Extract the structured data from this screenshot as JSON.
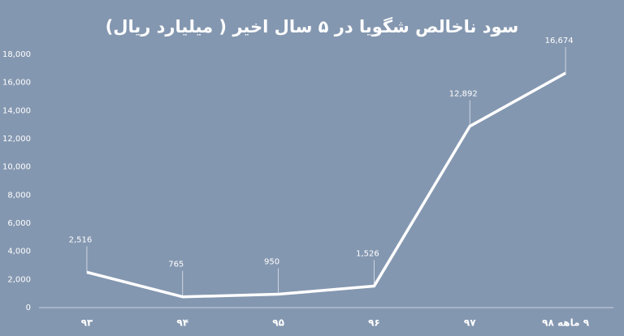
{
  "chart_data": {
    "type": "line",
    "title": "سود ناخالص شگویا در ۵ سال اخیر ( میلیارد ریال)",
    "categories": [
      "۹۳",
      "۹۴",
      "۹۵",
      "۹۶",
      "۹۷",
      "۹ ماهه ۹۸"
    ],
    "values": [
      2516,
      765,
      950,
      1526,
      12892,
      16674
    ],
    "value_labels": [
      "2,516",
      "765",
      "950",
      "1,526",
      "12,892",
      "16,674"
    ],
    "color": "#ffffff",
    "ylim": [
      0,
      18000
    ],
    "yticks": [
      0,
      {
        "value": 2000,
        "label": "2,000"
      },
      {
        "value": 4000,
        "label": "4,000"
      },
      {
        "value": 6000,
        "label": "6,000"
      },
      {
        "value": 8000,
        "label": "8,000"
      },
      {
        "value": 10000,
        "label": "10,000"
      },
      {
        "value": 12000,
        "label": "12,000"
      },
      {
        "value": 14000,
        "label": "14,000"
      },
      {
        "value": 16000,
        "label": "16,000"
      },
      {
        "value": 18000,
        "label": "18,000"
      }
    ],
    "grid": false
  }
}
